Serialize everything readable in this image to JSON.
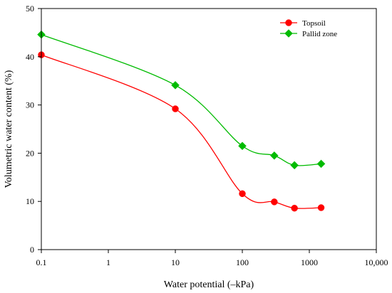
{
  "chart_data": {
    "type": "line",
    "title": "",
    "xlabel": "Water potential (–kPa)",
    "ylabel": "Volumetric water content (%)",
    "xscale": "log",
    "xlim": [
      0.1,
      10000
    ],
    "ylim": [
      0,
      50
    ],
    "xticks": [
      0.1,
      1,
      10,
      100,
      1000,
      10000
    ],
    "xtick_labels": [
      "0.1",
      "1",
      "10",
      "100",
      "1000",
      "10,000"
    ],
    "yticks": [
      0,
      10,
      20,
      30,
      40,
      50
    ],
    "ytick_labels": [
      "0",
      "10",
      "20",
      "30",
      "40",
      "50"
    ],
    "grid": false,
    "legend_position": "top-right",
    "series": [
      {
        "name": "Topsoil",
        "color": "#ff0000",
        "marker": "circle",
        "x": [
          0.1,
          10,
          100,
          300,
          600,
          1500
        ],
        "y": [
          40.4,
          29.2,
          11.6,
          9.9,
          8.6,
          8.7
        ]
      },
      {
        "name": "Pallid zone",
        "color": "#00bb00",
        "marker": "diamond",
        "x": [
          0.1,
          10,
          100,
          300,
          600,
          1500
        ],
        "y": [
          44.6,
          34.1,
          21.5,
          19.5,
          17.5,
          17.8
        ]
      }
    ]
  }
}
